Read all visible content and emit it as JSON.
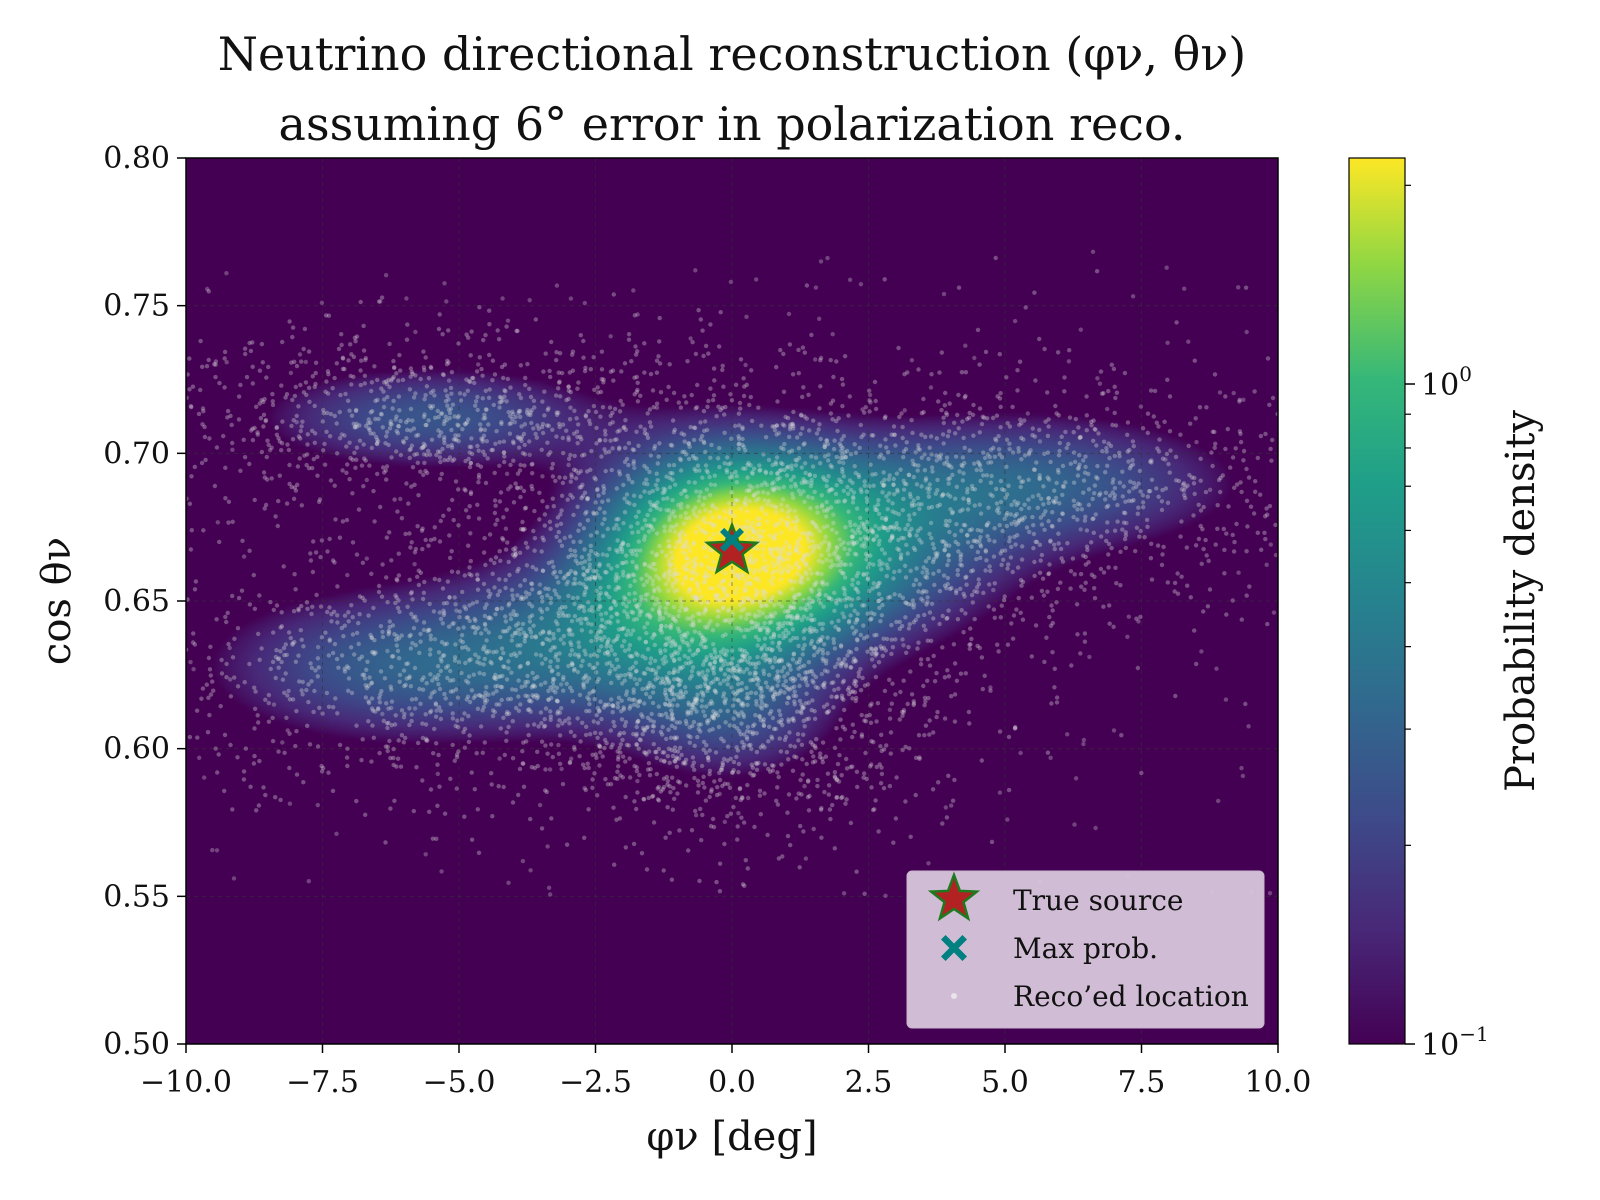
{
  "chart_data": {
    "type": "heatmap",
    "title": "Neutrino directional reconstruction (φν, θν)",
    "subtitle": "assuming 6° error in polarization reco.",
    "xlabel": "φν [deg]",
    "ylabel": "cos θν",
    "xlim": [
      -10.0,
      10.0
    ],
    "ylim": [
      0.5,
      0.8
    ],
    "xticks": [
      "−10.0",
      "−7.5",
      "−5.0",
      "−2.5",
      "0.0",
      "2.5",
      "5.0",
      "7.5",
      "10.0"
    ],
    "yticks": [
      "0.50",
      "0.55",
      "0.60",
      "0.65",
      "0.70",
      "0.75",
      "0.80"
    ],
    "grid": true,
    "colormap": "viridis",
    "colorbar": {
      "label": "Probability density",
      "scale": "log",
      "range": [
        0.1,
        2.2
      ],
      "major_ticks": [
        "10−1",
        "100"
      ]
    },
    "density_peak": {
      "phi": 0.0,
      "cos_theta": 0.668
    },
    "density_lobes": [
      {
        "phi": -6.0,
        "cos_theta": 0.715
      },
      {
        "phi": -6.5,
        "cos_theta": 0.625
      },
      {
        "phi": 6.0,
        "cos_theta": 0.69
      },
      {
        "phi": 0.0,
        "cos_theta": 0.605
      }
    ],
    "markers": [
      {
        "name": "True source",
        "phi": 0.0,
        "cos_theta": 0.667,
        "shape": "star",
        "color": "#b22222",
        "edge": "#1f7a1f"
      },
      {
        "name": "Max prob.",
        "phi": 0.0,
        "cos_theta": 0.668,
        "shape": "x",
        "color": "#008080"
      }
    ],
    "scatter": {
      "name": "Reco'ed location",
      "color": "#dddddd",
      "count": 6000
    },
    "legend": {
      "placement": "lower-right",
      "entries": [
        "True source",
        "Max prob.",
        "Reco’ed location"
      ]
    }
  }
}
